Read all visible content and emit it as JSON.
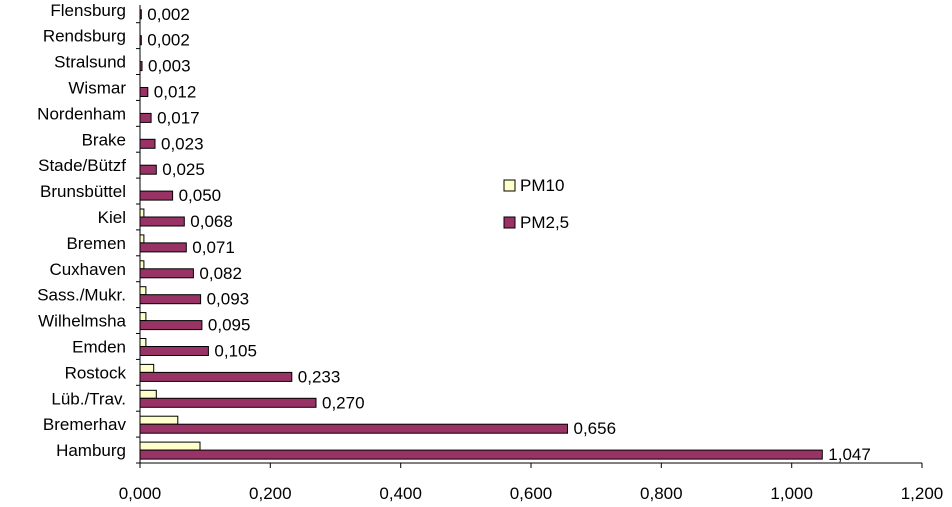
{
  "chart_data": {
    "type": "bar",
    "orientation": "horizontal",
    "categories": [
      "Hamburg",
      "Bremerhav",
      "Lüb./Trav.",
      "Rostock",
      "Emden",
      "Wilhelmsha",
      "Sass./Mukr.",
      "Cuxhaven",
      "Bremen",
      "Kiel",
      "Brunsbüttel",
      "Stade/Bützf",
      "Brake",
      "Nordenham",
      "Wismar",
      "Stralsund",
      "Rendsburg",
      "Flensburg"
    ],
    "series": [
      {
        "name": "PM10",
        "color": "#ffffcc",
        "values": [
          0.092,
          0.058,
          0.025,
          0.021,
          0.009,
          0.009,
          0.009,
          0.006,
          0.006,
          0.006,
          0.0,
          0.0,
          0.0,
          0.0,
          0.0,
          0.0,
          0.0,
          0.0
        ]
      },
      {
        "name": "PM2,5",
        "color": "#993366",
        "values": [
          1.047,
          0.656,
          0.27,
          0.233,
          0.105,
          0.095,
          0.093,
          0.082,
          0.071,
          0.068,
          0.05,
          0.025,
          0.023,
          0.017,
          0.012,
          0.003,
          0.002,
          0.002
        ]
      }
    ],
    "data_labels": [
      "1,047",
      "0,656",
      "0,270",
      "0,233",
      "0,105",
      "0,095",
      "0,093",
      "0,082",
      "0,071",
      "0,068",
      "0,050",
      "0,025",
      "0,023",
      "0,017",
      "0,012",
      "0,003",
      "0,002",
      "0,002"
    ],
    "x_ticks": [
      "0,000",
      "0,200",
      "0,400",
      "0,600",
      "0,800",
      "1,000",
      "1,200"
    ],
    "xlim": [
      0,
      1.2
    ],
    "title": "",
    "xlabel": "",
    "ylabel": "",
    "grid": false,
    "legend": {
      "placement": "right-middle",
      "entries": [
        "PM10",
        "PM2,5"
      ]
    }
  }
}
